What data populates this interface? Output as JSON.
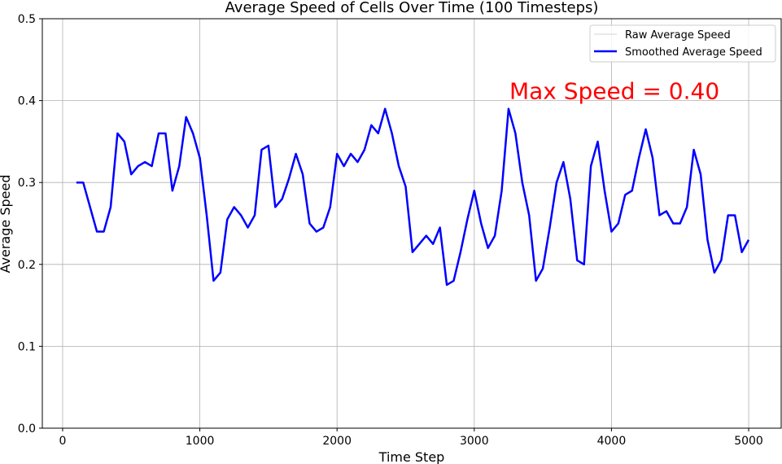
{
  "chart_data": {
    "type": "line",
    "title": "Average Speed of Cells Over Time (100 Timesteps)",
    "xlabel": "Time Step",
    "ylabel": "Average Speed",
    "x": [
      100,
      150,
      200,
      250,
      300,
      350,
      400,
      450,
      500,
      550,
      600,
      650,
      700,
      750,
      800,
      850,
      900,
      950,
      1000,
      1050,
      1100,
      1150,
      1200,
      1250,
      1300,
      1350,
      1400,
      1450,
      1500,
      1550,
      1600,
      1650,
      1700,
      1750,
      1800,
      1850,
      1900,
      1950,
      2000,
      2050,
      2100,
      2150,
      2200,
      2250,
      2300,
      2350,
      2400,
      2450,
      2500,
      2550,
      2600,
      2650,
      2700,
      2750,
      2800,
      2850,
      2900,
      2950,
      3000,
      3050,
      3100,
      3150,
      3200,
      3250,
      3300,
      3350,
      3400,
      3450,
      3500,
      3550,
      3600,
      3650,
      3700,
      3750,
      3800,
      3850,
      3900,
      3950,
      4000,
      4050,
      4100,
      4150,
      4200,
      4250,
      4300,
      4350,
      4400,
      4450,
      4500,
      4550,
      4600,
      4650,
      4700,
      4750,
      4800,
      4850,
      4900,
      4950,
      5000
    ],
    "series": [
      {
        "name": "Raw Average Speed",
        "color": "#d3d3d3",
        "width": 1,
        "values": [
          0.3,
          0.3,
          0.27,
          0.24,
          0.24,
          0.27,
          0.36,
          0.35,
          0.31,
          0.32,
          0.325,
          0.32,
          0.36,
          0.36,
          0.29,
          0.32,
          0.38,
          0.36,
          0.33,
          0.26,
          0.18,
          0.19,
          0.255,
          0.27,
          0.26,
          0.245,
          0.26,
          0.34,
          0.345,
          0.27,
          0.28,
          0.305,
          0.335,
          0.31,
          0.25,
          0.24,
          0.245,
          0.27,
          0.335,
          0.32,
          0.335,
          0.325,
          0.34,
          0.37,
          0.36,
          0.39,
          0.36,
          0.32,
          0.295,
          0.215,
          0.225,
          0.235,
          0.225,
          0.245,
          0.175,
          0.18,
          0.215,
          0.255,
          0.29,
          0.25,
          0.22,
          0.235,
          0.29,
          0.39,
          0.36,
          0.3,
          0.26,
          0.18,
          0.195,
          0.245,
          0.3,
          0.325,
          0.28,
          0.205,
          0.2,
          0.32,
          0.35,
          0.29,
          0.24,
          0.25,
          0.285,
          0.29,
          0.33,
          0.365,
          0.33,
          0.26,
          0.265,
          0.25,
          0.25,
          0.27,
          0.34,
          0.31,
          0.23,
          0.19,
          0.205,
          0.26,
          0.26,
          0.215,
          0.23
        ]
      },
      {
        "name": "Smoothed Average Speed",
        "color": "#0000ff",
        "width": 2.5,
        "values": [
          0.3,
          0.3,
          0.27,
          0.24,
          0.24,
          0.27,
          0.36,
          0.35,
          0.31,
          0.32,
          0.325,
          0.32,
          0.36,
          0.36,
          0.29,
          0.32,
          0.38,
          0.36,
          0.33,
          0.26,
          0.18,
          0.19,
          0.255,
          0.27,
          0.26,
          0.245,
          0.26,
          0.34,
          0.345,
          0.27,
          0.28,
          0.305,
          0.335,
          0.31,
          0.25,
          0.24,
          0.245,
          0.27,
          0.335,
          0.32,
          0.335,
          0.325,
          0.34,
          0.37,
          0.36,
          0.39,
          0.36,
          0.32,
          0.295,
          0.215,
          0.225,
          0.235,
          0.225,
          0.245,
          0.175,
          0.18,
          0.215,
          0.255,
          0.29,
          0.25,
          0.22,
          0.235,
          0.29,
          0.39,
          0.36,
          0.3,
          0.26,
          0.18,
          0.195,
          0.245,
          0.3,
          0.325,
          0.28,
          0.205,
          0.2,
          0.32,
          0.35,
          0.29,
          0.24,
          0.25,
          0.285,
          0.29,
          0.33,
          0.365,
          0.33,
          0.26,
          0.265,
          0.25,
          0.25,
          0.27,
          0.34,
          0.31,
          0.23,
          0.19,
          0.205,
          0.26,
          0.26,
          0.215,
          0.23
        ]
      }
    ],
    "xlim": [
      -148,
      5237
    ],
    "ylim": [
      0,
      0.5
    ],
    "xticks": [
      0,
      1000,
      2000,
      3000,
      4000,
      5000
    ],
    "yticks": [
      {
        "value": 0,
        "label": "0.0"
      },
      0.1,
      0.2,
      0.3,
      0.4,
      0.5
    ],
    "grid": true,
    "legend": "upper right",
    "annotation": {
      "text": "Max Speed = 0.40",
      "x": 3256,
      "y": 0.4,
      "color": "#ff0000"
    }
  }
}
